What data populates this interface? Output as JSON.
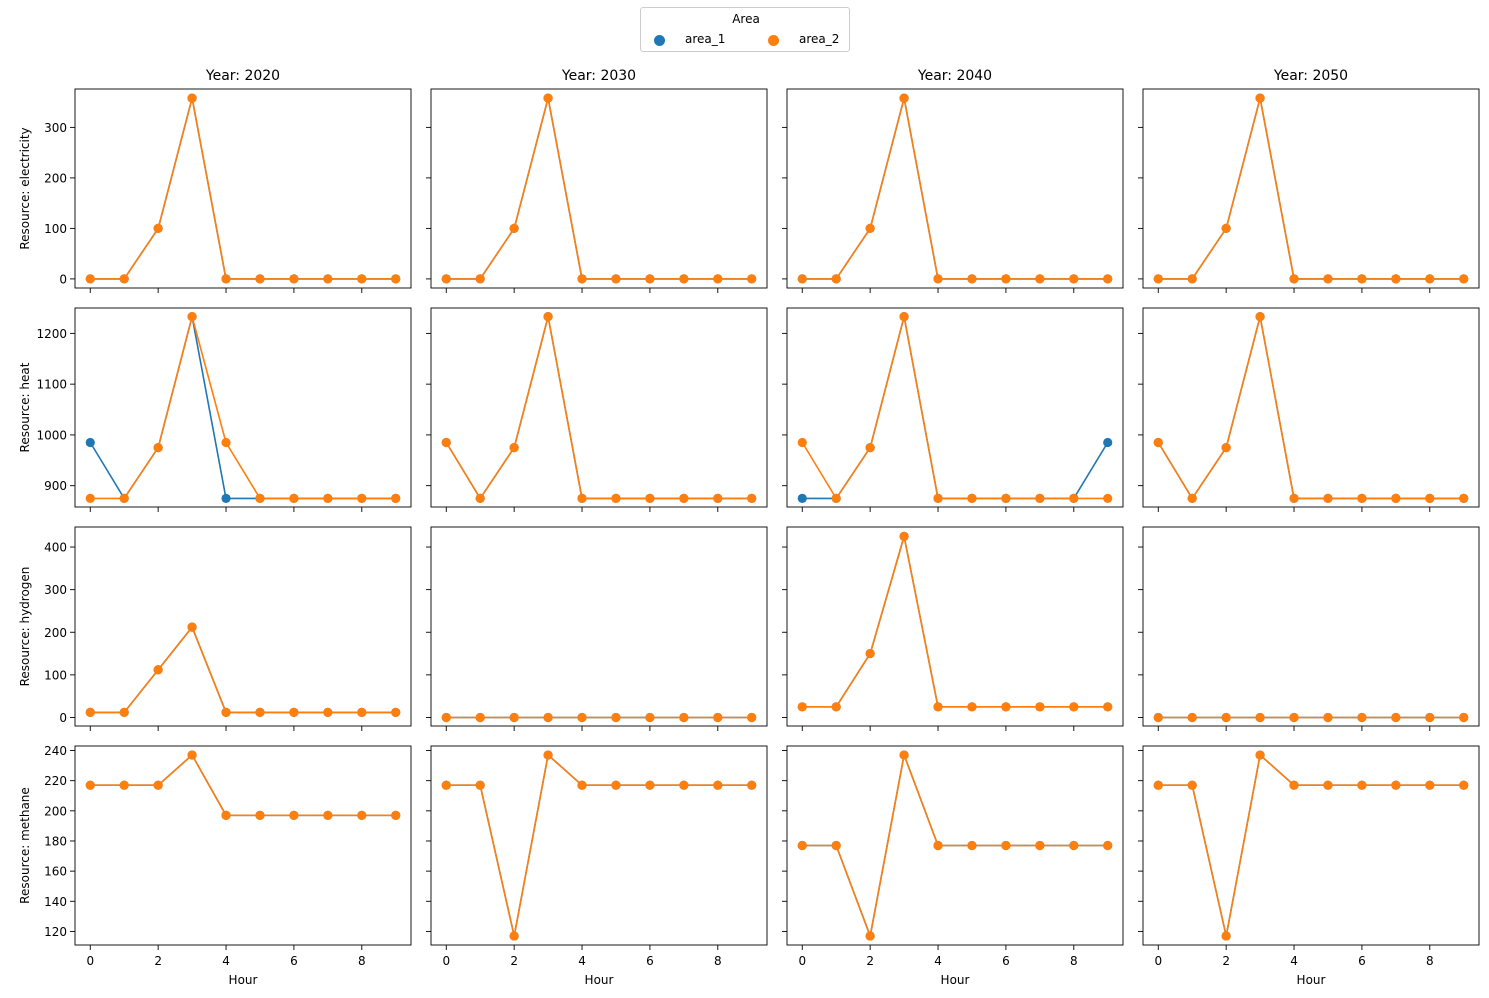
{
  "legend": {
    "title": "Area",
    "entries": [
      {
        "label": "area_1",
        "color": "#1f77b4"
      },
      {
        "label": "area_2",
        "color": "#ff7f0e"
      }
    ]
  },
  "chart_data": {
    "type": "line",
    "x": [
      0,
      1,
      2,
      3,
      4,
      5,
      6,
      7,
      8,
      9
    ],
    "xlabel": "Hour",
    "xticks": [
      0,
      2,
      4,
      6,
      8
    ],
    "columns": [
      "Year: 2020",
      "Year: 2030",
      "Year: 2040",
      "Year: 2050"
    ],
    "rows": [
      {
        "ylabel": "Resource: electricity",
        "ylim": [
          -18,
          376
        ],
        "yticks": [
          0,
          100,
          200,
          300
        ]
      },
      {
        "ylabel": "Resource: heat",
        "ylim": [
          858,
          1250
        ],
        "yticks": [
          900,
          1000,
          1100,
          1200
        ]
      },
      {
        "ylabel": "Resource: hydrogen",
        "ylim": [
          -20,
          447
        ],
        "yticks": [
          0,
          100,
          200,
          300,
          400
        ]
      },
      {
        "ylabel": "Resource: methane",
        "ylim": [
          111,
          243
        ],
        "yticks": [
          120,
          140,
          160,
          180,
          200,
          220,
          240
        ]
      }
    ],
    "panels": [
      [
        {
          "area_1": [
            0,
            0,
            100,
            358,
            0,
            0,
            0,
            0,
            0,
            0
          ],
          "area_2": [
            0,
            0,
            100,
            358,
            0,
            0,
            0,
            0,
            0,
            0
          ]
        },
        {
          "area_1": [
            0,
            0,
            100,
            358,
            0,
            0,
            0,
            0,
            0,
            0
          ],
          "area_2": [
            0,
            0,
            100,
            358,
            0,
            0,
            0,
            0,
            0,
            0
          ]
        },
        {
          "area_1": [
            0,
            0,
            100,
            358,
            0,
            0,
            0,
            0,
            0,
            0
          ],
          "area_2": [
            0,
            0,
            100,
            358,
            0,
            0,
            0,
            0,
            0,
            0
          ]
        },
        {
          "area_1": [
            0,
            0,
            100,
            358,
            0,
            0,
            0,
            0,
            0,
            0
          ],
          "area_2": [
            0,
            0,
            100,
            358,
            0,
            0,
            0,
            0,
            0,
            0
          ]
        }
      ],
      [
        {
          "area_1": [
            985,
            875,
            975,
            1233,
            875,
            875,
            875,
            875,
            875,
            875
          ],
          "area_2": [
            875,
            875,
            975,
            1233,
            985,
            875,
            875,
            875,
            875,
            875
          ]
        },
        {
          "area_1": [
            985,
            875,
            975,
            1233,
            875,
            875,
            875,
            875,
            875,
            875
          ],
          "area_2": [
            985,
            875,
            975,
            1233,
            875,
            875,
            875,
            875,
            875,
            875
          ]
        },
        {
          "area_1": [
            875,
            875,
            975,
            1233,
            875,
            875,
            875,
            875,
            875,
            985
          ],
          "area_2": [
            985,
            875,
            975,
            1233,
            875,
            875,
            875,
            875,
            875,
            875
          ]
        },
        {
          "area_1": [
            985,
            875,
            975,
            1233,
            875,
            875,
            875,
            875,
            875,
            875
          ],
          "area_2": [
            985,
            875,
            975,
            1233,
            875,
            875,
            875,
            875,
            875,
            875
          ]
        }
      ],
      [
        {
          "area_1": [
            12,
            12,
            112,
            212,
            12,
            12,
            12,
            12,
            12,
            12
          ],
          "area_2": [
            12,
            12,
            112,
            212,
            12,
            12,
            12,
            12,
            12,
            12
          ]
        },
        {
          "area_1": [
            0,
            0,
            0,
            0,
            0,
            0,
            0,
            0,
            0,
            0
          ],
          "area_2": [
            0,
            0,
            0,
            0,
            0,
            0,
            0,
            0,
            0,
            0
          ]
        },
        {
          "area_1": [
            25,
            25,
            150,
            425,
            25,
            25,
            25,
            25,
            25,
            25
          ],
          "area_2": [
            25,
            25,
            150,
            425,
            25,
            25,
            25,
            25,
            25,
            25
          ]
        },
        {
          "area_1": [
            0,
            0,
            0,
            0,
            0,
            0,
            0,
            0,
            0,
            0
          ],
          "area_2": [
            0,
            0,
            0,
            0,
            0,
            0,
            0,
            0,
            0,
            0
          ]
        }
      ],
      [
        {
          "area_1": [
            217,
            217,
            217,
            237,
            197,
            197,
            197,
            197,
            197,
            197
          ],
          "area_2": [
            217,
            217,
            217,
            237,
            197,
            197,
            197,
            197,
            197,
            197
          ]
        },
        {
          "area_1": [
            217,
            217,
            117,
            237,
            217,
            217,
            217,
            217,
            217,
            217
          ],
          "area_2": [
            217,
            217,
            117,
            237,
            217,
            217,
            217,
            217,
            217,
            217
          ]
        },
        {
          "area_1": [
            177,
            177,
            117,
            237,
            177,
            177,
            177,
            177,
            177,
            177
          ],
          "area_2": [
            177,
            177,
            117,
            237,
            177,
            177,
            177,
            177,
            177,
            177
          ]
        },
        {
          "area_1": [
            217,
            217,
            117,
            237,
            217,
            217,
            217,
            217,
            217,
            217
          ],
          "area_2": [
            217,
            217,
            117,
            237,
            217,
            217,
            217,
            217,
            217,
            217
          ]
        }
      ]
    ]
  }
}
